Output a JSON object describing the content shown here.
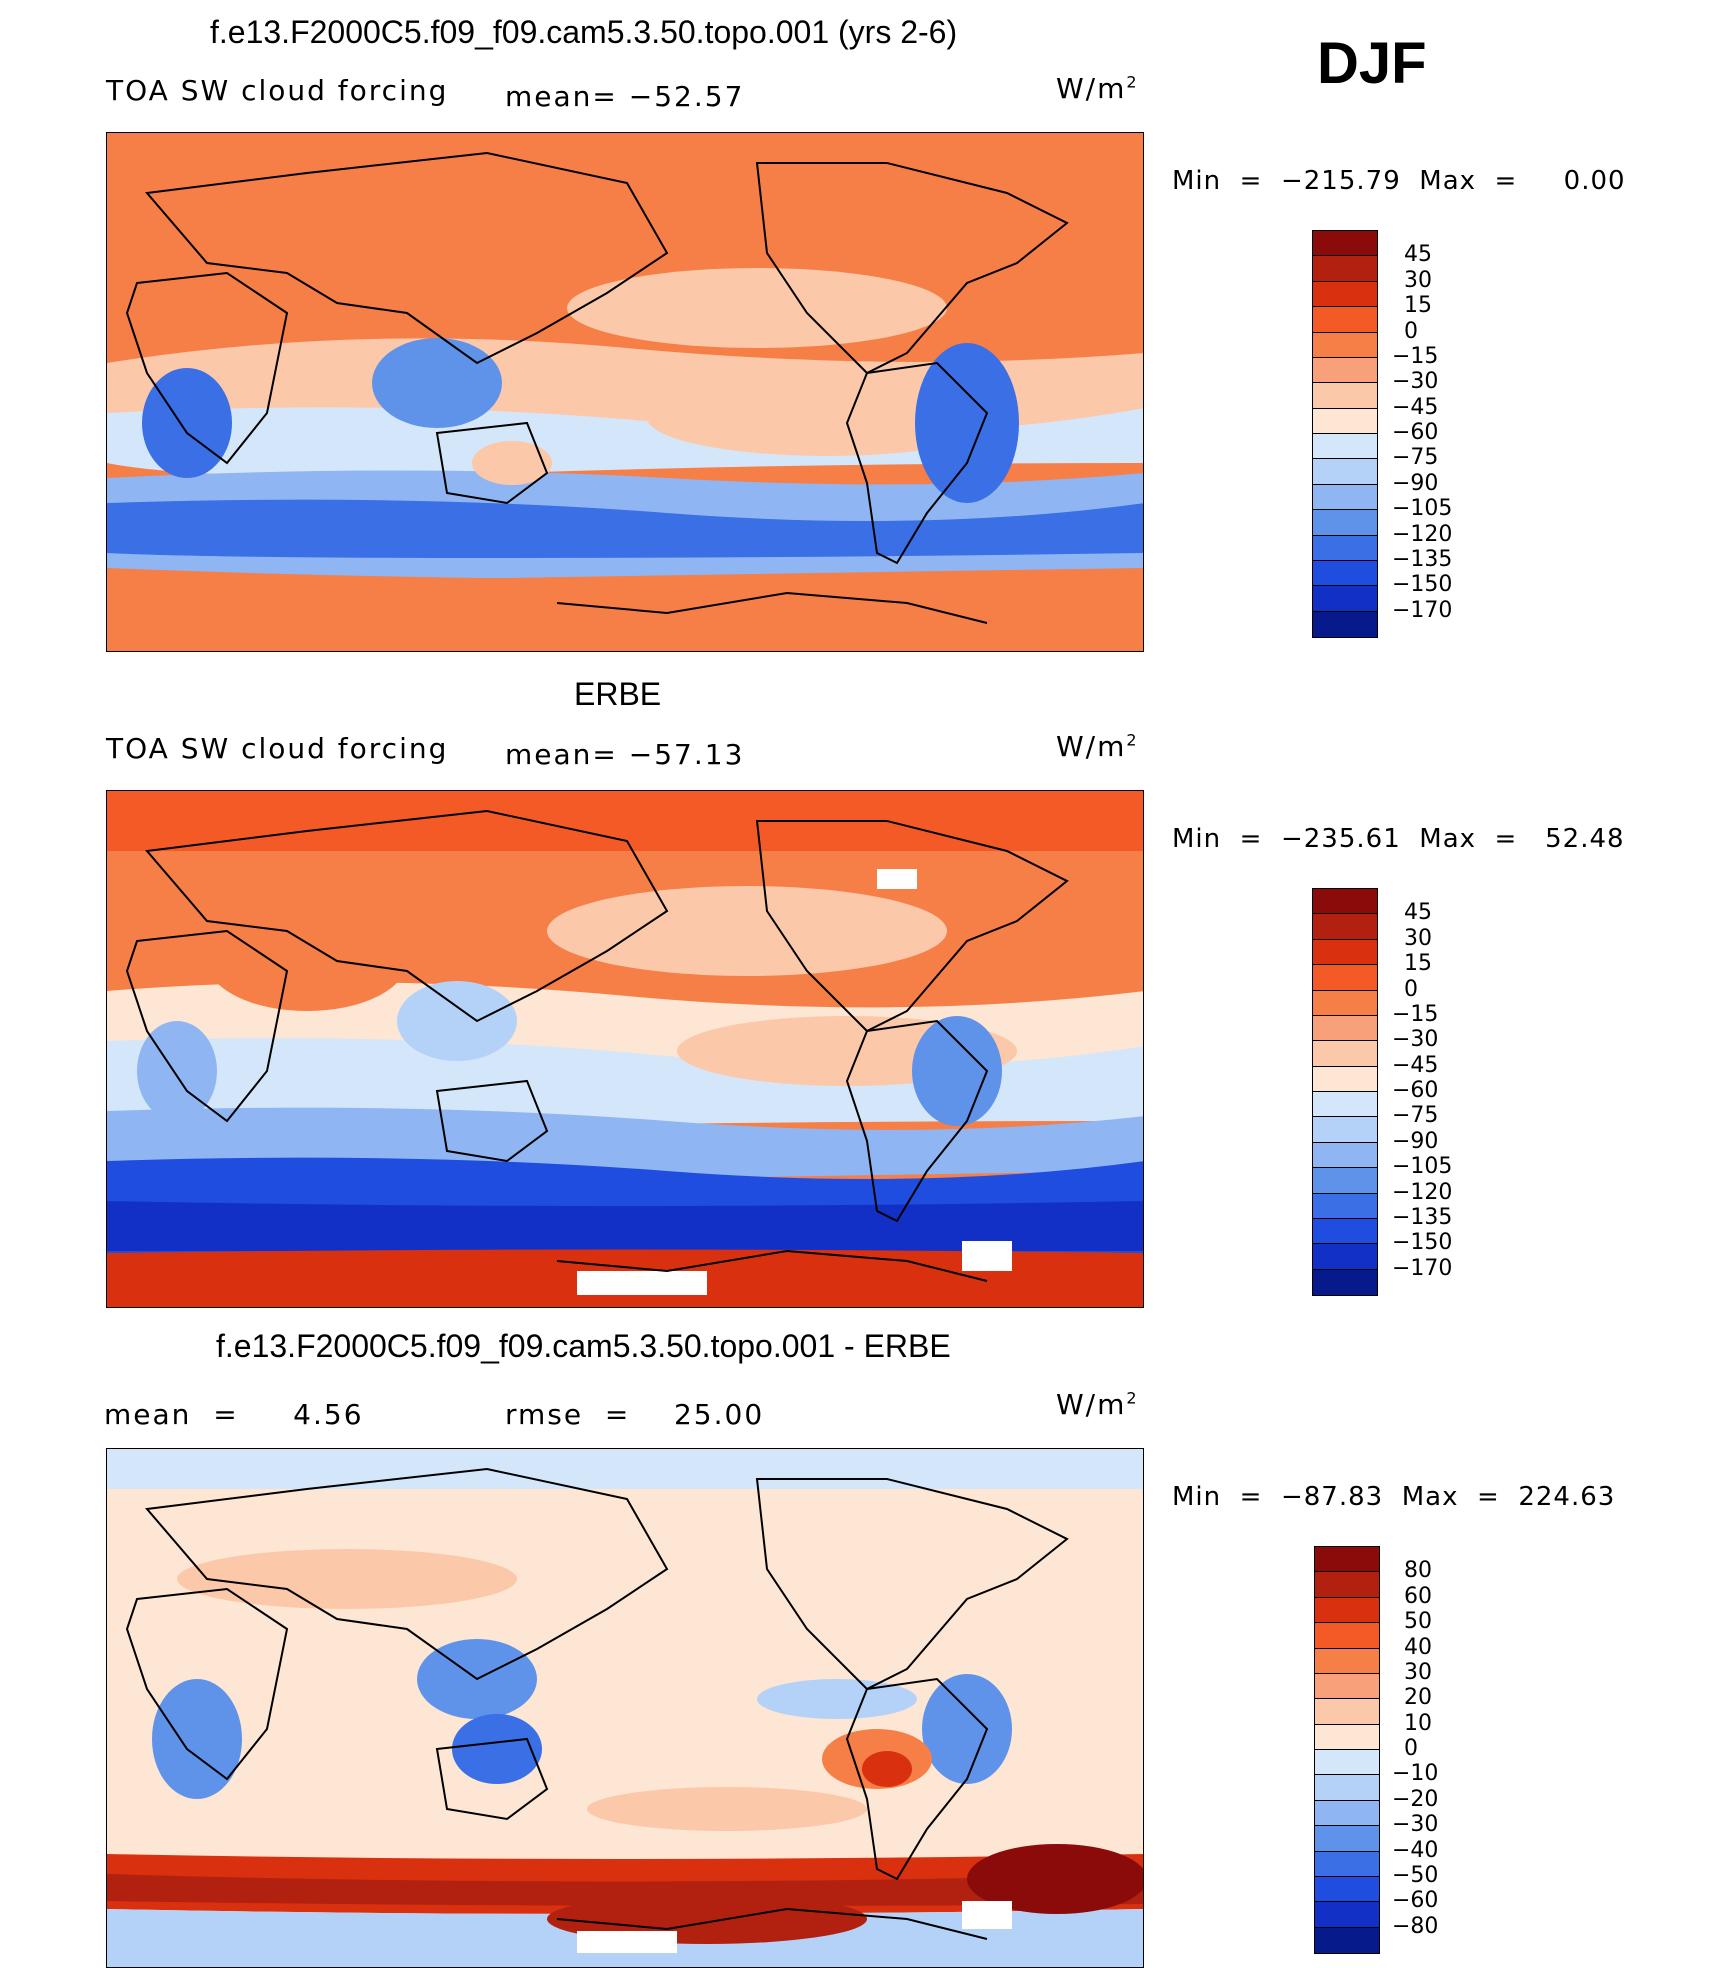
{
  "season": "DJF",
  "panels": [
    {
      "title": "f.e13.F2000C5.f09_f09.cam5.3.50.topo.001 (yrs 2-6)",
      "left_label": "TOA SW cloud forcing",
      "center_label": "mean= −52.57",
      "units": "W/m",
      "units_exp": "2",
      "minmax": "Min  =  −215.79  Max  =     0.00",
      "colorbar": {
        "colors": [
          "#8b0a0a",
          "#b22010",
          "#d9300f",
          "#f35a26",
          "#f67e47",
          "#f8a07a",
          "#fbc9aa",
          "#fde6d4",
          "#d4e6f9",
          "#b4d2f7",
          "#8fb6f2",
          "#5f93ea",
          "#3a6fe6",
          "#1f4de0",
          "#1330c6",
          "#061a8c"
        ],
        "labels": [
          "45",
          "30",
          "15",
          "0",
          "−15",
          "−30",
          "−45",
          "−60",
          "−75",
          "−90",
          "−105",
          "−120",
          "−135",
          "−150",
          "−170"
        ]
      }
    },
    {
      "title": "ERBE",
      "left_label": "TOA SW cloud forcing",
      "center_label": "mean= −57.13",
      "units": "W/m",
      "units_exp": "2",
      "minmax": "Min  =  −235.61  Max  =   52.48",
      "colorbar": {
        "colors": [
          "#8b0a0a",
          "#b22010",
          "#d9300f",
          "#f35a26",
          "#f67e47",
          "#f8a07a",
          "#fbc9aa",
          "#fde6d4",
          "#d4e6f9",
          "#b4d2f7",
          "#8fb6f2",
          "#5f93ea",
          "#3a6fe6",
          "#1f4de0",
          "#1330c6",
          "#061a8c"
        ],
        "labels": [
          "45",
          "30",
          "15",
          "0",
          "−15",
          "−30",
          "−45",
          "−60",
          "−75",
          "−90",
          "−105",
          "−120",
          "−135",
          "−150",
          "−170"
        ]
      }
    },
    {
      "title": "f.e13.F2000C5.f09_f09.cam5.3.50.topo.001 - ERBE",
      "left_label": "mean  =     4.56",
      "center_label": "rmse  =    25.00",
      "units": "W/m",
      "units_exp": "2",
      "minmax": "Min  =  −87.83  Max  =  224.63",
      "colorbar": {
        "colors": [
          "#8b0a0a",
          "#b22010",
          "#d9300f",
          "#f35a26",
          "#f67e47",
          "#f8a07a",
          "#fbc9aa",
          "#fde6d4",
          "#d4e6f9",
          "#b4d2f7",
          "#8fb6f2",
          "#5f93ea",
          "#3a6fe6",
          "#1f4de0",
          "#1330c6",
          "#061a8c"
        ],
        "labels": [
          "80",
          "60",
          "50",
          "40",
          "30",
          "20",
          "10",
          "0",
          "−10",
          "−20",
          "−30",
          "−40",
          "−50",
          "−60",
          "−80"
        ]
      }
    }
  ]
}
